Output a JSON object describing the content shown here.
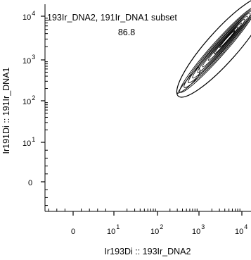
{
  "chart_data": {
    "type": "contour",
    "gate": {
      "name": "193Ir_DNA2, 191Ir_DNA1 subset",
      "percent": "86.8",
      "shape": "ellipse"
    },
    "xlabel": "Ir193Di :: 193Ir_DNA2",
    "ylabel": "Ir191Di :: 191Ir_DNA1",
    "x_scale": "biexponential",
    "y_scale": "biexponential",
    "x_ticks": [
      {
        "value": 0,
        "base": "0",
        "exp": ""
      },
      {
        "value": 10,
        "base": "10",
        "exp": "1"
      },
      {
        "value": 100,
        "base": "10",
        "exp": "2"
      },
      {
        "value": 1000,
        "base": "10",
        "exp": "3"
      },
      {
        "value": 10000,
        "base": "10",
        "exp": "4"
      }
    ],
    "y_ticks": [
      {
        "value": 0,
        "base": "0",
        "exp": ""
      },
      {
        "value": 10,
        "base": "10",
        "exp": "1"
      },
      {
        "value": 100,
        "base": "10",
        "exp": "2"
      },
      {
        "value": 1000,
        "base": "10",
        "exp": "3"
      },
      {
        "value": 10000,
        "base": "10",
        "exp": "4"
      }
    ],
    "population": {
      "center": [
        2500,
        1900
      ],
      "start": [
        300,
        150
      ],
      "end": [
        18000,
        15000
      ]
    },
    "grid": false,
    "legend": "none"
  }
}
